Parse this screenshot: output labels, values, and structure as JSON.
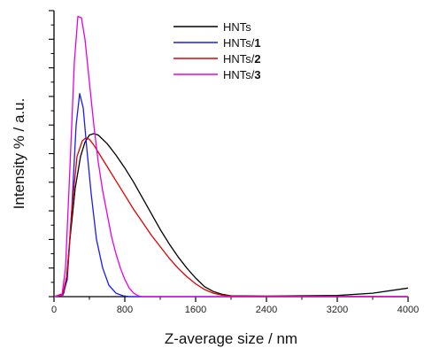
{
  "chart_data": {
    "type": "line",
    "xlabel": "Z-average size / nm",
    "ylabel": "Intensity % / a.u.",
    "xlim": [
      0,
      4000
    ],
    "ylim": [
      0,
      1
    ],
    "x_ticks": [
      "0",
      "800",
      "1600",
      "2400",
      "3200",
      "4000"
    ],
    "x_tick_values": [
      0,
      800,
      1600,
      2400,
      3200,
      4000
    ],
    "y_tick_labels_shown": false,
    "grid": false,
    "legend_placement": "top-center",
    "series": [
      {
        "name": "HNTs",
        "name_base": "HNTs",
        "name_suffix": "",
        "color": "#000000",
        "points": [
          [
            0,
            0
          ],
          [
            60,
            0.004
          ],
          [
            110,
            0.012
          ],
          [
            140,
            0.06
          ],
          [
            180,
            0.2
          ],
          [
            240,
            0.38
          ],
          [
            300,
            0.49
          ],
          [
            350,
            0.54
          ],
          [
            400,
            0.565
          ],
          [
            450,
            0.57
          ],
          [
            500,
            0.565
          ],
          [
            600,
            0.535
          ],
          [
            700,
            0.495
          ],
          [
            800,
            0.45
          ],
          [
            900,
            0.4
          ],
          [
            1000,
            0.345
          ],
          [
            1100,
            0.29
          ],
          [
            1200,
            0.235
          ],
          [
            1300,
            0.185
          ],
          [
            1400,
            0.14
          ],
          [
            1500,
            0.1
          ],
          [
            1600,
            0.065
          ],
          [
            1700,
            0.035
          ],
          [
            1800,
            0.018
          ],
          [
            1900,
            0.008
          ],
          [
            2000,
            0.003
          ],
          [
            2400,
            0.002
          ],
          [
            3200,
            0.004
          ],
          [
            3600,
            0.012
          ],
          [
            4000,
            0.03
          ]
        ]
      },
      {
        "name": "HNTs/1",
        "name_base": "HNTs/",
        "name_suffix": "1",
        "color": "#1a1aff",
        "points": [
          [
            0,
            0
          ],
          [
            100,
            0.005
          ],
          [
            150,
            0.06
          ],
          [
            200,
            0.3
          ],
          [
            250,
            0.6
          ],
          [
            290,
            0.71
          ],
          [
            330,
            0.66
          ],
          [
            370,
            0.52
          ],
          [
            420,
            0.36
          ],
          [
            480,
            0.2
          ],
          [
            550,
            0.1
          ],
          [
            620,
            0.04
          ],
          [
            700,
            0.012
          ],
          [
            780,
            0.003
          ],
          [
            850,
            0
          ],
          [
            4000,
            0
          ]
        ]
      },
      {
        "name": "HNTs/2",
        "name_base": "HNTs/",
        "name_suffix": "2",
        "color": "#e00000",
        "points": [
          [
            0,
            0
          ],
          [
            100,
            0.01
          ],
          [
            150,
            0.08
          ],
          [
            200,
            0.3
          ],
          [
            260,
            0.49
          ],
          [
            320,
            0.545
          ],
          [
            360,
            0.555
          ],
          [
            400,
            0.55
          ],
          [
            450,
            0.53
          ],
          [
            500,
            0.505
          ],
          [
            600,
            0.455
          ],
          [
            700,
            0.405
          ],
          [
            800,
            0.355
          ],
          [
            900,
            0.305
          ],
          [
            1000,
            0.26
          ],
          [
            1100,
            0.215
          ],
          [
            1200,
            0.175
          ],
          [
            1300,
            0.135
          ],
          [
            1400,
            0.1
          ],
          [
            1500,
            0.07
          ],
          [
            1600,
            0.045
          ],
          [
            1700,
            0.025
          ],
          [
            1800,
            0.012
          ],
          [
            1900,
            0.005
          ],
          [
            2000,
            0.002
          ],
          [
            4000,
            0
          ]
        ]
      },
      {
        "name": "HNTs/3",
        "name_base": "HNTs/",
        "name_suffix": "3",
        "color": "#e600e6",
        "points": [
          [
            0,
            0
          ],
          [
            90,
            0.005
          ],
          [
            130,
            0.1
          ],
          [
            180,
            0.45
          ],
          [
            230,
            0.82
          ],
          [
            270,
            0.98
          ],
          [
            310,
            0.975
          ],
          [
            350,
            0.9
          ],
          [
            400,
            0.75
          ],
          [
            450,
            0.6
          ],
          [
            500,
            0.47
          ],
          [
            550,
            0.37
          ],
          [
            600,
            0.29
          ],
          [
            650,
            0.21
          ],
          [
            700,
            0.15
          ],
          [
            750,
            0.1
          ],
          [
            800,
            0.06
          ],
          [
            850,
            0.03
          ],
          [
            900,
            0.012
          ],
          [
            950,
            0.003
          ],
          [
            1000,
            0
          ],
          [
            4000,
            0
          ]
        ]
      }
    ]
  }
}
